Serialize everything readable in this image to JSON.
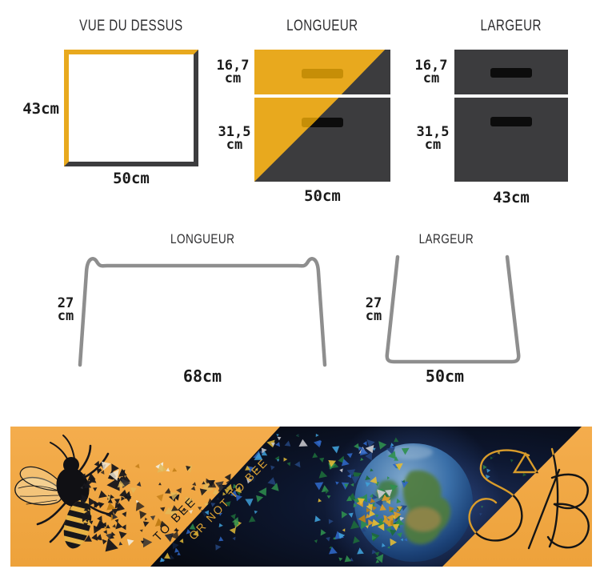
{
  "colors": {
    "accent_yellow": "#E8A91E",
    "drawer_dark_gray": "#3C3C3E",
    "handle_olive": "#C68E07",
    "handle_black": "#0C0C0C",
    "wireframe_gray": "#8E8E8E",
    "banner_yellow": "#F2A845",
    "banner_space_black": "#0A0D14",
    "slogan_gold": "#DCA334"
  },
  "top_view": {
    "title": "VUE DU DESSUS",
    "side_label": "43cm",
    "bottom_label": "50cm"
  },
  "length_view": {
    "title": "LONGUEUR",
    "drawer_top_value": "16,7",
    "drawer_top_unit": "cm",
    "drawer_bottom_value": "31,5",
    "drawer_bottom_unit": "cm",
    "bottom_label": "50cm"
  },
  "width_view": {
    "title": "LARGEUR",
    "drawer_top_value": "16,7",
    "drawer_top_unit": "cm",
    "drawer_bottom_value": "31,5",
    "drawer_bottom_unit": "cm",
    "bottom_label": "43cm"
  },
  "frame_length_view": {
    "title": "LONGUEUR",
    "height_value": "27",
    "height_unit": "cm",
    "bottom_label": "68cm"
  },
  "frame_width_view": {
    "title": "LARGEUR",
    "height_value": "27",
    "height_unit": "cm",
    "bottom_label": "50cm"
  },
  "banner": {
    "slogan_left": "TO BEE",
    "slogan_right": "OR NOT TO BEE",
    "logo_text": "SΔB",
    "particles_yellow_side": [
      "#17171C",
      "#2E2E33",
      "#F2EAD8",
      "#E2B959",
      "#C07C14"
    ],
    "particles_dark_side": [
      "#2F8F4E",
      "#1D6B3A",
      "#2F66C4",
      "#24457E",
      "#3FA0D8",
      "#E2BB37",
      "#CFCFD4",
      "#11213E"
    ],
    "particles_gold_cluster": [
      "#D89B2A",
      "#E2BB37",
      "#B97F16"
    ]
  }
}
